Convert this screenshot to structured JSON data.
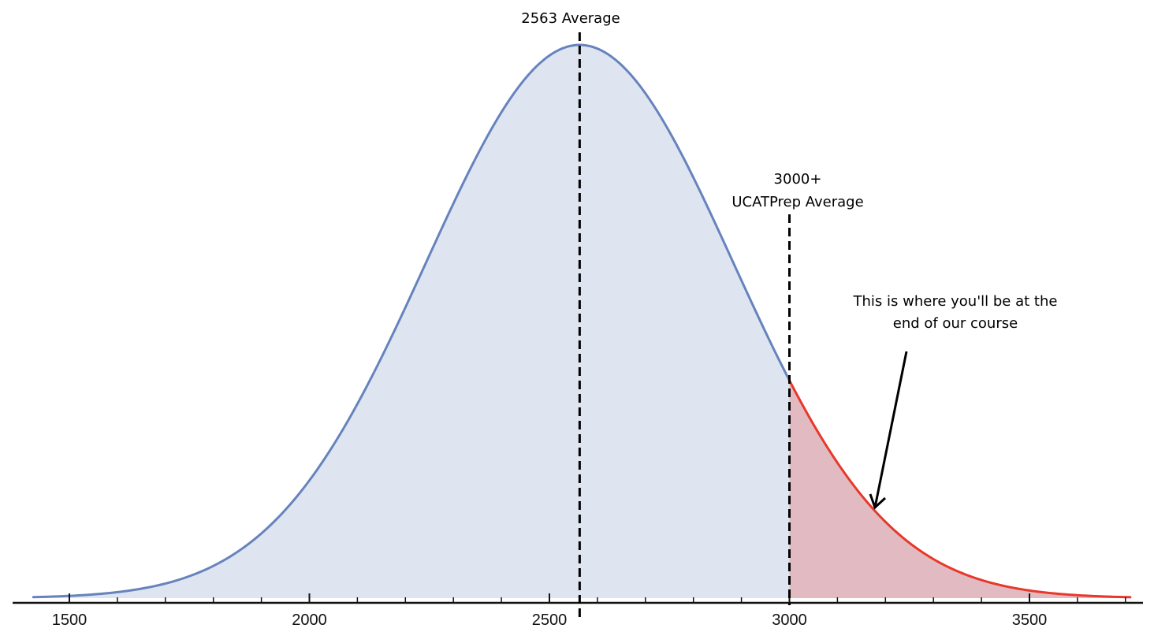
{
  "chart_data": {
    "type": "area",
    "title": "",
    "xlabel": "",
    "ylabel": "",
    "xlim": [
      1410,
      3725
    ],
    "x_ticks_major": [
      1500,
      2000,
      2500,
      3000,
      3500
    ],
    "x_tick_labels": [
      "1500",
      "2000",
      "2500",
      "3000",
      "3500"
    ],
    "x_ticks_minor_step": 100,
    "y_axis_visible": false,
    "grid": false,
    "legend": "none",
    "distribution": {
      "kind": "normal",
      "mean": 2563,
      "sd": 320,
      "x_start": 1425,
      "x_end": 3710
    },
    "series": [
      {
        "x_from": 1425,
        "x_to": 3000,
        "line_color": "#6683bd",
        "fill_color": "#dfe5f0"
      },
      {
        "x_from": 3000,
        "x_to": 3710,
        "line_color": "#e8382a",
        "fill_color": "#e2bbc2"
      }
    ],
    "reference_lines": [
      {
        "x": 2563,
        "style": "dashed",
        "label": "2563 Average"
      },
      {
        "x": 3000,
        "style": "dashed",
        "label_line1": "3000+",
        "label_line2": "UCATPrep Average"
      }
    ],
    "annotation": {
      "line1": "This is where you'll be at the",
      "line2": "end of our course",
      "arrow_from_x": 3250,
      "arrow_to_x": 3200
    }
  },
  "labels": {
    "mean_label": "2563 Average",
    "prep_label_line1": "3000+",
    "prep_label_line2": "UCATPrep Average",
    "note_line1": "This is where you'll be at the",
    "note_line2": "end of our course"
  }
}
